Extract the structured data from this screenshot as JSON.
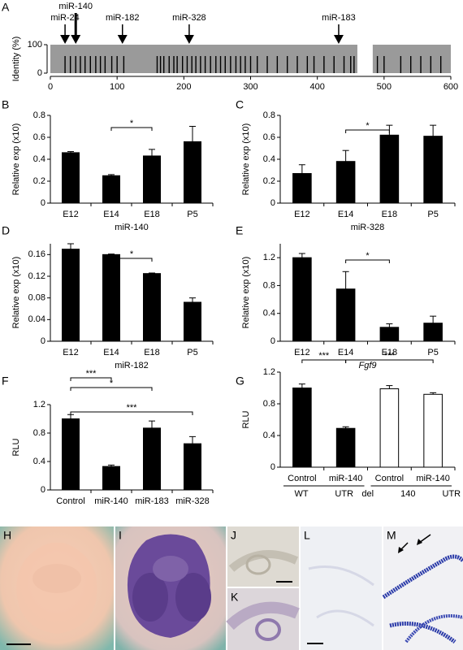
{
  "chart_data": [
    {
      "type": "identity",
      "panel": "A",
      "ylabel": "Identity (%)",
      "xlim": [
        0,
        600
      ],
      "xticks": [
        0,
        100,
        200,
        300,
        400,
        500,
        600
      ],
      "ylim": [
        0,
        100
      ],
      "yticks": [
        0,
        100
      ],
      "regions": [
        {
          "start": 0,
          "end": 460,
          "identity": 100
        },
        {
          "start": 483,
          "end": 600,
          "identity": 100
        }
      ],
      "region_color": "#9a9a9a",
      "color": "#000000",
      "x": [
        22,
        30,
        38,
        45,
        52,
        60,
        68,
        75,
        82,
        92,
        100,
        110,
        160,
        165,
        170,
        178,
        185,
        190,
        198,
        205,
        212,
        218,
        225,
        232,
        240,
        248,
        255,
        262,
        270,
        278,
        285,
        292,
        300,
        310,
        325,
        340,
        355,
        370,
        385,
        395,
        410,
        425,
        440,
        450,
        455,
        490,
        500,
        525,
        540,
        555,
        570,
        585
      ],
      "values": [
        60,
        60,
        60,
        60,
        60,
        60,
        60,
        60,
        60,
        60,
        60,
        60,
        60,
        60,
        60,
        60,
        60,
        60,
        60,
        60,
        60,
        60,
        60,
        60,
        60,
        60,
        60,
        60,
        60,
        60,
        60,
        60,
        60,
        60,
        60,
        60,
        60,
        60,
        60,
        60,
        60,
        60,
        60,
        60,
        60,
        60,
        60,
        60,
        60,
        60,
        60,
        60
      ],
      "annotations": [
        {
          "text": "miR-24",
          "x": 22
        },
        {
          "text": "miR-140",
          "x": 38
        },
        {
          "text": "miR-182",
          "x": 108
        },
        {
          "text": "miR-328",
          "x": 208
        },
        {
          "text": "miR-183",
          "x": 432
        }
      ]
    },
    {
      "type": "bar",
      "panel": "B",
      "ylabel": "Relative exp (x10)",
      "xlabel": "miR-140",
      "categories": [
        "E12",
        "E14",
        "E18",
        "P5"
      ],
      "values": [
        0.46,
        0.25,
        0.43,
        0.56
      ],
      "errors": [
        0.01,
        0.01,
        0.06,
        0.14
      ],
      "colors": [
        "#000000",
        "#000000",
        "#000000",
        "#000000"
      ],
      "ylim": [
        0,
        0.8
      ],
      "yticks": [
        0,
        0.2,
        0.4,
        0.6,
        0.8
      ],
      "significance": [
        {
          "from": 1,
          "to": 2,
          "label": "*"
        }
      ]
    },
    {
      "type": "bar",
      "panel": "C",
      "ylabel": "Relative exp (x10)",
      "xlabel": "miR-328",
      "categories": [
        "E12",
        "E14",
        "E18",
        "P5"
      ],
      "values": [
        0.27,
        0.38,
        0.62,
        0.61
      ],
      "errors": [
        0.08,
        0.1,
        0.09,
        0.1
      ],
      "colors": [
        "#000000",
        "#000000",
        "#000000",
        "#000000"
      ],
      "ylim": [
        0,
        0.8
      ],
      "yticks": [
        0,
        0.2,
        0.4,
        0.6,
        0.8
      ],
      "significance": [
        {
          "from": 1,
          "to": 2,
          "label": "*"
        }
      ]
    },
    {
      "type": "bar",
      "panel": "D",
      "ylabel": "Relative exp (x10)",
      "xlabel": "miR-182",
      "categories": [
        "E12",
        "E14",
        "E18",
        "P5"
      ],
      "values": [
        0.17,
        0.16,
        0.125,
        0.072
      ],
      "errors": [
        0.01,
        0.001,
        0.001,
        0.008
      ],
      "colors": [
        "#000000",
        "#000000",
        "#000000",
        "#000000"
      ],
      "ylim": [
        0,
        0.18
      ],
      "yticks": [
        0,
        0.04,
        0.08,
        0.12,
        0.16
      ],
      "significance": [
        {
          "from": 1,
          "to": 2,
          "label": "*"
        }
      ]
    },
    {
      "type": "bar",
      "panel": "E",
      "ylabel": "Relative exp (x10)",
      "xlabel": "Fgf9",
      "xlabel_italic": true,
      "categories": [
        "E12",
        "E14",
        "E18",
        "P5"
      ],
      "values": [
        1.2,
        0.75,
        0.2,
        0.26
      ],
      "errors": [
        0.06,
        0.25,
        0.05,
        0.1
      ],
      "colors": [
        "#000000",
        "#000000",
        "#000000",
        "#000000"
      ],
      "ylim": [
        0,
        1.4
      ],
      "yticks": [
        0,
        0.4,
        0.8,
        1.2
      ],
      "significance": [
        {
          "from": 1,
          "to": 2,
          "label": "*"
        }
      ]
    },
    {
      "type": "bar",
      "panel": "F",
      "ylabel": "RLU",
      "categories": [
        "Control",
        "miR-140",
        "miR-183",
        "miR-328"
      ],
      "values": [
        1.0,
        0.33,
        0.87,
        0.65
      ],
      "errors": [
        0.06,
        0.02,
        0.1,
        0.1
      ],
      "colors": [
        "#000000",
        "#000000",
        "#000000",
        "#000000"
      ],
      "ylim": [
        0,
        1.2
      ],
      "yticks": [
        0,
        0.4,
        0.8,
        1.2
      ],
      "significance": [
        {
          "from": 0,
          "to": 1,
          "label": "***"
        },
        {
          "from": 0,
          "to": 2,
          "label": "*"
        },
        {
          "from": 0,
          "to": 3,
          "label": "***"
        }
      ]
    },
    {
      "type": "bar",
      "panel": "G",
      "ylabel": "RLU",
      "categories": [
        "Control",
        "miR-140",
        "Control",
        "miR-140"
      ],
      "values": [
        1.0,
        0.49,
        0.99,
        0.92
      ],
      "errors": [
        0.05,
        0.02,
        0.04,
        0.02
      ],
      "colors": [
        "#000000",
        "#000000",
        "#ffffff",
        "#ffffff"
      ],
      "ylim": [
        0,
        1.2
      ],
      "yticks": [
        0,
        0.4,
        0.8,
        1.2
      ],
      "group_labels": [
        "WT UTR",
        "del 140 UTR"
      ],
      "significance": [
        {
          "from": 0,
          "to": 1,
          "label": "***"
        },
        {
          "from": 1,
          "to": 3,
          "label": "***"
        }
      ]
    }
  ],
  "image_panels": [
    {
      "panel": "H"
    },
    {
      "panel": "I"
    },
    {
      "panel": "J"
    },
    {
      "panel": "K"
    },
    {
      "panel": "L"
    },
    {
      "panel": "M"
    }
  ]
}
